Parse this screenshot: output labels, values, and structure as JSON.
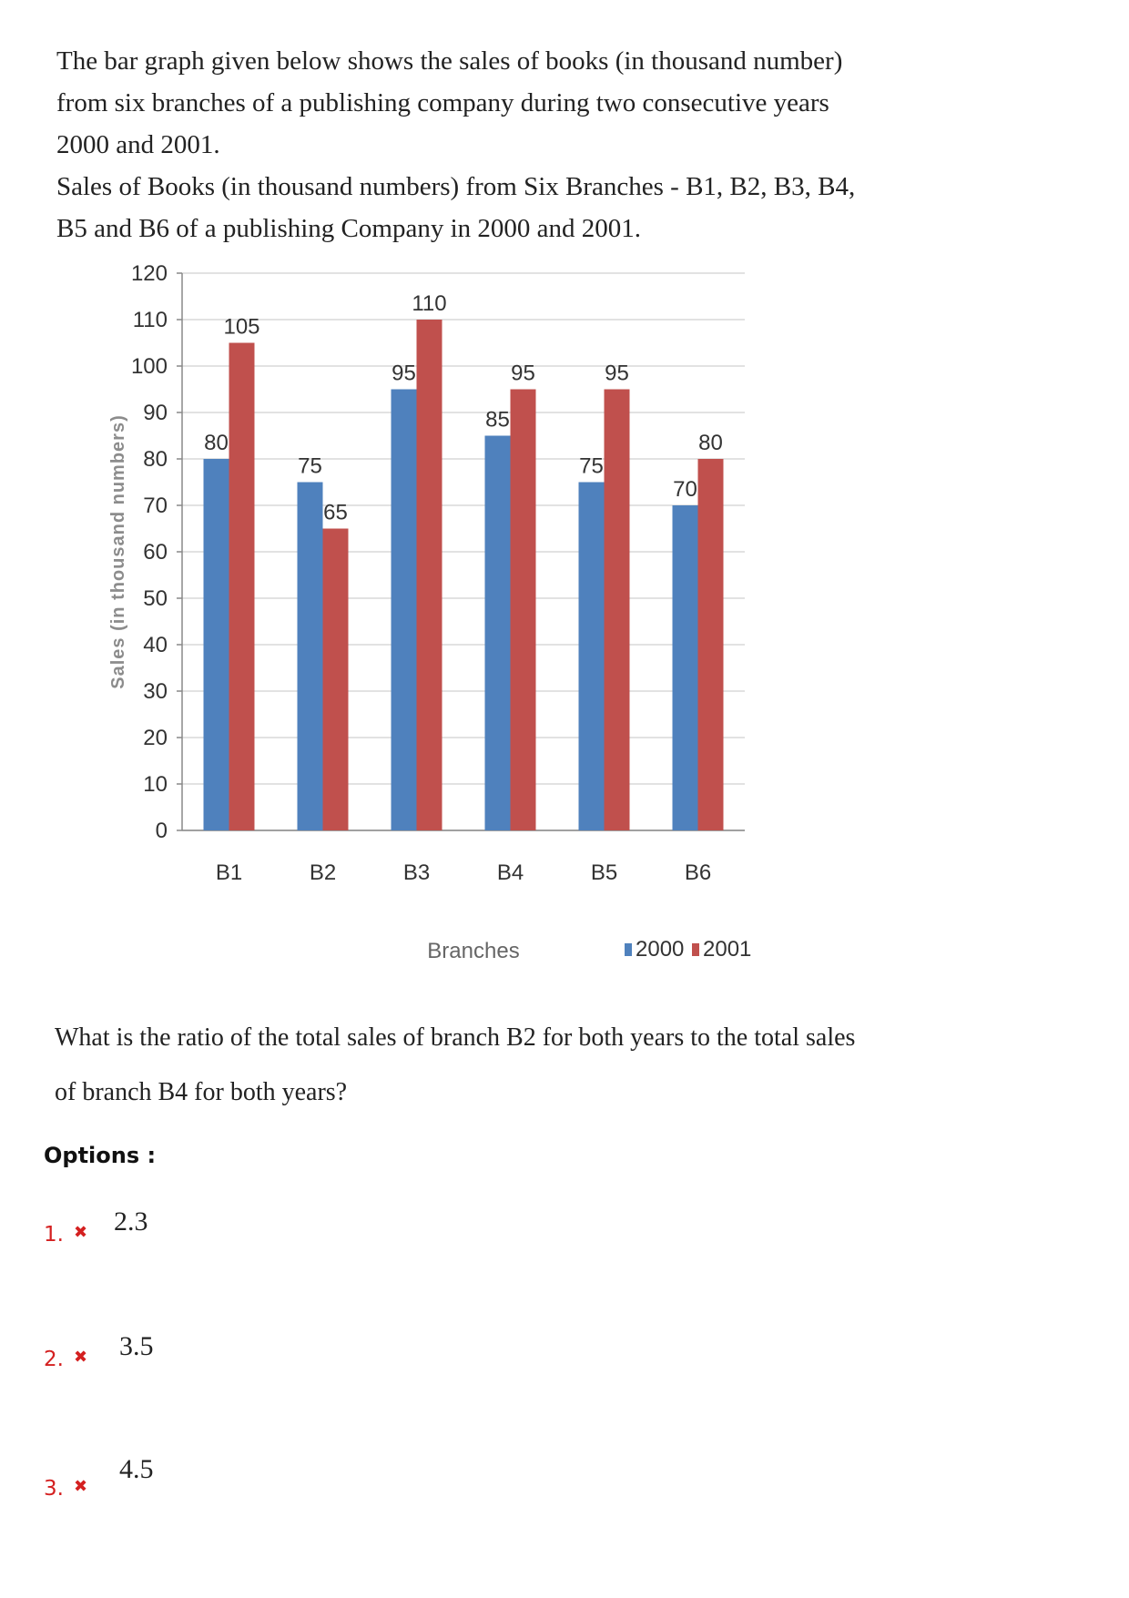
{
  "intro": {
    "line1": "The bar graph given below shows the sales of books (in thousand number) from six branches of a publishing company during two consecutive years 2000 and 2001.",
    "line2": "Sales of Books (in thousand numbers) from Six Branches - B1, B2, B3, B4, B5 and B6 of a publishing Company in 2000 and 2001."
  },
  "chart_data": {
    "type": "bar",
    "categories": [
      "B1",
      "B2",
      "B3",
      "B4",
      "B5",
      "B6"
    ],
    "series": [
      {
        "name": "2000",
        "values": [
          80,
          75,
          95,
          85,
          75,
          70
        ],
        "color": "#4f81bd"
      },
      {
        "name": "2001",
        "values": [
          105,
          65,
          110,
          95,
          95,
          80
        ],
        "color": "#c0504d"
      }
    ],
    "xlabel": "Branches",
    "ylabel": "Sales (in thousand numbers)",
    "ylim": [
      0,
      120
    ],
    "yticks": [
      0,
      10,
      20,
      30,
      40,
      50,
      60,
      70,
      80,
      90,
      100,
      110,
      120
    ],
    "grid": true,
    "legend": "bottom-right",
    "data_labels": true
  },
  "question": "What is the ratio of the total sales of branch B2 for both years to the total sales of branch B4 for both years?",
  "options_label": "Options :",
  "options": [
    {
      "num": "1.",
      "value": "2.3"
    },
    {
      "num": "2.",
      "value": "3.5"
    },
    {
      "num": "3.",
      "value": "4.5"
    }
  ],
  "option_icon": "cross-icon"
}
